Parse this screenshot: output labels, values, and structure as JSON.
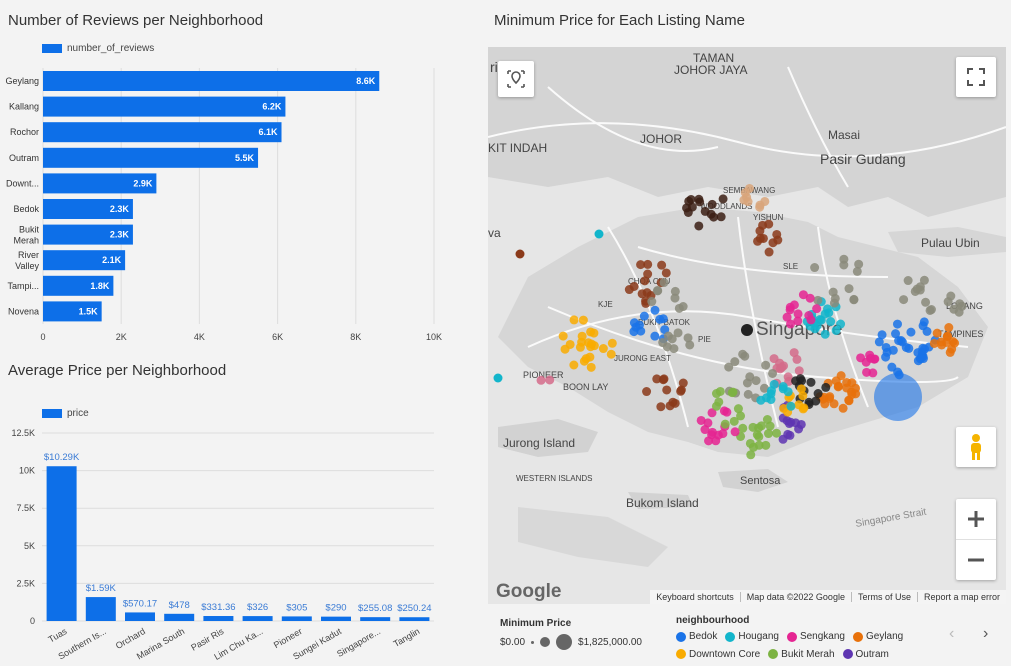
{
  "chart_data": [
    {
      "type": "bar",
      "orientation": "horizontal",
      "title": "Number of Reviews per Neighborhood",
      "series": [
        {
          "name": "number_of_reviews",
          "values": [
            8600,
            6200,
            6100,
            5500,
            2900,
            2300,
            2300,
            2100,
            1800,
            1500
          ]
        }
      ],
      "categories": [
        "Geylang",
        "Kallang",
        "Rochor",
        "Outram",
        "Downt...",
        "Bedok",
        "Bukit Merah",
        "River Valley",
        "Tampi...",
        "Novena"
      ],
      "data_labels": [
        "8.6K",
        "6.2K",
        "6.1K",
        "5.5K",
        "2.9K",
        "2.3K",
        "2.3K",
        "2.1K",
        "1.8K",
        "1.5K"
      ],
      "x_ticks": [
        "0",
        "2K",
        "4K",
        "6K",
        "8K",
        "10K"
      ],
      "xlim": [
        0,
        10000
      ],
      "color": "#0d6fe8"
    },
    {
      "type": "bar",
      "title": "Average Price per Neighborhood",
      "series": [
        {
          "name": "price",
          "values": [
            10290,
            1590,
            570.17,
            478,
            331.36,
            326,
            305,
            290,
            255.08,
            250.24
          ]
        }
      ],
      "categories": [
        "Tuas",
        "Southern Is...",
        "Orchard",
        "Marina South",
        "Pasir Ris",
        "Lim Chu Ka...",
        "Pioneer",
        "Sungei Kadut",
        "Singapore...",
        "Tanglin"
      ],
      "data_labels": [
        "$10.29K",
        "$1.59K",
        "$570.17",
        "$478",
        "$331.36",
        "$326",
        "$305",
        "$290",
        "$255.08",
        "$250.24"
      ],
      "y_ticks": [
        "0",
        "2.5K",
        "5K",
        "7.5K",
        "10K",
        "12.5K"
      ],
      "ylim": [
        0,
        12500
      ],
      "color": "#0d6fe8"
    }
  ],
  "map": {
    "title": "Minimum Price for Each Listing Name",
    "labels": {
      "taman": "TAMAN",
      "johor_jaya": "JOHOR JAYA",
      "johor": "JOHOR",
      "masai": "Masai",
      "pasir_gudang": "Pasir Gudang",
      "kit_indah": "KIT INDAH",
      "pulau_ubin": "Pulau Ubin",
      "singapore": "Singapore",
      "pioneer": "PIONEER",
      "boon_lay": "BOON LAY",
      "jurong_island": "Jurong Island",
      "western_islands": "WESTERN ISLANDS",
      "bukom": "Bukom Island",
      "sentosa": "Sentosa",
      "strait": "Singapore Strait",
      "loyang": "LOYANG",
      "google": "Google",
      "sembawang": "SEMBAWANG",
      "yishun": "YISHUN",
      "woodlands": "WOODLANDS",
      "bukit_batok": "BUKIT BATOK",
      "jurong_east": "JURONG EAST",
      "choa_chu": "CHOA CHU",
      "sle": "SLE",
      "kje": "KJE",
      "pie": "PIE",
      "tampines": "TAMPINES",
      "rima": "ri",
      "va": "va"
    },
    "attribution": [
      "Keyboard shortcuts",
      "Map data ©2022 Google",
      "Terms of Use",
      "Report a map error"
    ],
    "legend": {
      "size_title": "Minimum Price",
      "size_min": "$0.00",
      "size_max": "$1,825,000.00",
      "color_title": "neighbourhood",
      "items": [
        {
          "name": "Bedok",
          "color": "#1a73e8"
        },
        {
          "name": "Hougang",
          "color": "#12b5cb"
        },
        {
          "name": "Sengkang",
          "color": "#e52592"
        },
        {
          "name": "Geylang",
          "color": "#e8710a"
        },
        {
          "name": "Downtown Core",
          "color": "#f9ab00"
        },
        {
          "name": "Bukit Merah",
          "color": "#7cb342"
        },
        {
          "name": "Outram",
          "color": "#5e35b1"
        }
      ]
    }
  }
}
